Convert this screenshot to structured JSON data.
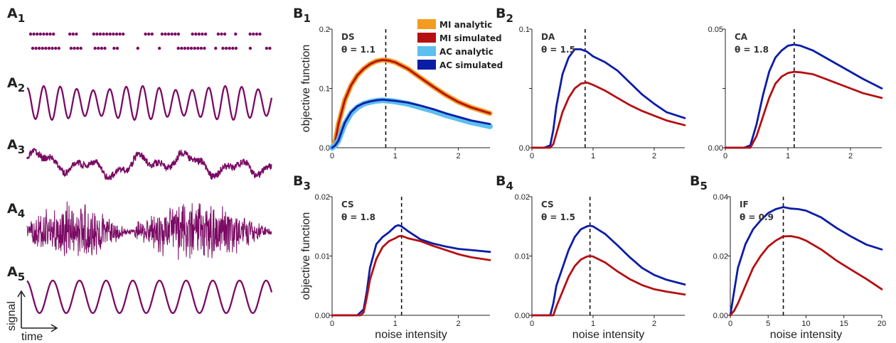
{
  "colors": {
    "signal": "#7a0a63",
    "mi_analytic": "#f39c1f",
    "mi_simulated": "#b50f12",
    "ac_analytic": "#5bbfef",
    "ac_simulated": "#0b1da6"
  },
  "signal_panels": [
    {
      "id": "A",
      "sub": "1",
      "kind": "spikes"
    },
    {
      "id": "A",
      "sub": "2",
      "kind": "quasi-periodic"
    },
    {
      "id": "A",
      "sub": "3",
      "kind": "noisy"
    },
    {
      "id": "A",
      "sub": "4",
      "kind": "bursty"
    },
    {
      "id": "A",
      "sub": "5",
      "kind": "sine"
    }
  ],
  "signal_axes": {
    "ylabel": "signal",
    "xlabel": "time"
  },
  "chart_data": [
    {
      "id": "B",
      "sub": "1",
      "type": "line",
      "annotation": [
        "DS",
        "θ = 1.1"
      ],
      "xlim": [
        0,
        2.5
      ],
      "ylim": [
        0,
        0.2
      ],
      "xticks": [
        "0",
        "1",
        "2"
      ],
      "yticks": [
        "0.0",
        "0.1",
        "0.2"
      ],
      "xlabel": "",
      "ylabel": "objective function",
      "vline": 0.85,
      "legend": [
        "MI analytic",
        "MI simulated",
        "AC analytic",
        "AC simulated"
      ],
      "series": [
        {
          "name": "MI analytic",
          "role": "mi_analytic",
          "x": [
            0,
            0.05,
            0.1,
            0.2,
            0.3,
            0.4,
            0.5,
            0.6,
            0.7,
            0.8,
            0.9,
            1.0,
            1.2,
            1.4,
            1.6,
            1.8,
            2.0,
            2.2,
            2.5
          ],
          "y": [
            0.0,
            0.01,
            0.04,
            0.08,
            0.105,
            0.122,
            0.133,
            0.141,
            0.146,
            0.148,
            0.147,
            0.144,
            0.133,
            0.118,
            0.103,
            0.089,
            0.077,
            0.068,
            0.058
          ]
        },
        {
          "name": "MI simulated",
          "role": "mi_simulated",
          "x": [
            0,
            0.05,
            0.1,
            0.2,
            0.3,
            0.4,
            0.5,
            0.6,
            0.7,
            0.8,
            0.9,
            1.0,
            1.2,
            1.4,
            1.6,
            1.8,
            2.0,
            2.2,
            2.5
          ],
          "y": [
            0.0,
            0.01,
            0.04,
            0.08,
            0.105,
            0.122,
            0.133,
            0.141,
            0.146,
            0.148,
            0.147,
            0.144,
            0.133,
            0.118,
            0.103,
            0.089,
            0.077,
            0.068,
            0.058
          ]
        },
        {
          "name": "AC analytic",
          "role": "ac_analytic",
          "x": [
            0,
            0.05,
            0.1,
            0.2,
            0.3,
            0.4,
            0.5,
            0.6,
            0.7,
            0.8,
            0.9,
            1.0,
            1.2,
            1.4,
            1.6,
            1.8,
            2.0,
            2.2,
            2.5
          ],
          "y": [
            0.0,
            0.004,
            0.012,
            0.04,
            0.058,
            0.068,
            0.074,
            0.077,
            0.079,
            0.08,
            0.079,
            0.078,
            0.074,
            0.068,
            0.062,
            0.055,
            0.049,
            0.043,
            0.036
          ]
        },
        {
          "name": "AC simulated",
          "role": "ac_simulated",
          "x": [
            0,
            0.05,
            0.1,
            0.2,
            0.3,
            0.4,
            0.5,
            0.6,
            0.7,
            0.8,
            0.9,
            1.0,
            1.2,
            1.4,
            1.6,
            1.8,
            2.0,
            2.2,
            2.5
          ],
          "y": [
            0.0,
            0.004,
            0.012,
            0.042,
            0.06,
            0.07,
            0.075,
            0.078,
            0.08,
            0.081,
            0.08,
            0.079,
            0.076,
            0.071,
            0.065,
            0.058,
            0.052,
            0.046,
            0.04
          ]
        }
      ]
    },
    {
      "id": "B",
      "sub": "2",
      "type": "line",
      "annotation": [
        "DA",
        "θ = 1.5"
      ],
      "xlim": [
        0,
        2.5
      ],
      "ylim": [
        0,
        0.1
      ],
      "xticks": [
        "0",
        "1",
        "2"
      ],
      "yticks": [
        "0.0",
        "",
        "0.1"
      ],
      "vline": 0.87,
      "series": [
        {
          "role": "ac_simulated",
          "x": [
            0,
            0.2,
            0.3,
            0.35,
            0.4,
            0.5,
            0.6,
            0.7,
            0.8,
            0.9,
            1.0,
            1.2,
            1.4,
            1.6,
            1.8,
            2.0,
            2.2,
            2.5
          ],
          "y": [
            0,
            0,
            0.002,
            0.015,
            0.035,
            0.062,
            0.076,
            0.083,
            0.083,
            0.081,
            0.077,
            0.072,
            0.065,
            0.055,
            0.045,
            0.037,
            0.03,
            0.025
          ]
        },
        {
          "role": "mi_simulated",
          "x": [
            0,
            0.3,
            0.35,
            0.4,
            0.5,
            0.6,
            0.7,
            0.8,
            0.9,
            1.0,
            1.2,
            1.4,
            1.6,
            1.8,
            2.0,
            2.2,
            2.5
          ],
          "y": [
            0,
            0,
            0.003,
            0.012,
            0.03,
            0.042,
            0.05,
            0.054,
            0.055,
            0.053,
            0.048,
            0.042,
            0.036,
            0.031,
            0.027,
            0.023,
            0.019
          ]
        }
      ]
    },
    {
      "id": "C",
      "sub": "",
      "type": "line",
      "annotation": [
        "CA",
        "θ = 1.8"
      ],
      "xlim": [
        0,
        2.5
      ],
      "ylim": [
        0,
        0.05
      ],
      "xticks": [
        "0",
        "1",
        "2"
      ],
      "yticks": [
        "0.00",
        "",
        "0.05"
      ],
      "vline": 1.1,
      "series": [
        {
          "role": "ac_simulated",
          "x": [
            0,
            0.3,
            0.4,
            0.5,
            0.6,
            0.7,
            0.8,
            0.9,
            1.0,
            1.1,
            1.2,
            1.4,
            1.6,
            1.8,
            2.0,
            2.2,
            2.5
          ],
          "y": [
            0,
            0,
            0.001,
            0.01,
            0.022,
            0.032,
            0.038,
            0.041,
            0.043,
            0.0435,
            0.043,
            0.041,
            0.038,
            0.035,
            0.032,
            0.029,
            0.025
          ]
        },
        {
          "role": "mi_simulated",
          "x": [
            0,
            0.4,
            0.5,
            0.6,
            0.7,
            0.8,
            0.9,
            1.0,
            1.1,
            1.2,
            1.4,
            1.6,
            1.8,
            2.0,
            2.2,
            2.5
          ],
          "y": [
            0,
            0,
            0.005,
            0.013,
            0.021,
            0.027,
            0.03,
            0.0315,
            0.032,
            0.0318,
            0.031,
            0.029,
            0.027,
            0.025,
            0.023,
            0.021
          ]
        }
      ]
    },
    {
      "id": "B",
      "sub": "3",
      "type": "line",
      "annotation": [
        "CS",
        "θ = 1.8"
      ],
      "xlim": [
        0,
        2.5
      ],
      "ylim": [
        0,
        0.02
      ],
      "xticks": [
        "0",
        "1",
        "2"
      ],
      "yticks": [
        "0.00",
        "0.01",
        "0.02"
      ],
      "xlabel": "noise intensity",
      "ylabel": "objective function",
      "vline": 1.1,
      "series": [
        {
          "role": "ac_simulated",
          "x": [
            0,
            0.4,
            0.5,
            0.55,
            0.6,
            0.7,
            0.8,
            0.9,
            1.0,
            1.05,
            1.1,
            1.2,
            1.4,
            1.6,
            1.8,
            2.0,
            2.2,
            2.5
          ],
          "y": [
            0,
            0,
            0.001,
            0.004,
            0.008,
            0.012,
            0.0132,
            0.014,
            0.015,
            0.0152,
            0.015,
            0.0142,
            0.0128,
            0.0121,
            0.0116,
            0.0112,
            0.011,
            0.0107
          ]
        },
        {
          "role": "mi_simulated",
          "x": [
            0,
            0.45,
            0.5,
            0.55,
            0.6,
            0.7,
            0.8,
            0.9,
            1.0,
            1.05,
            1.1,
            1.2,
            1.4,
            1.6,
            1.8,
            2.0,
            2.2,
            2.5
          ],
          "y": [
            0,
            0,
            0.0005,
            0.003,
            0.006,
            0.0095,
            0.0115,
            0.0125,
            0.013,
            0.0133,
            0.0134,
            0.013,
            0.0125,
            0.0117,
            0.011,
            0.0103,
            0.0098,
            0.0093
          ]
        }
      ]
    },
    {
      "id": "B",
      "sub": "4",
      "type": "line",
      "annotation": [
        "CS",
        "θ = 1.5"
      ],
      "xlim": [
        0,
        2.5
      ],
      "ylim": [
        0,
        0.02
      ],
      "xticks": [
        "0",
        "1",
        "2"
      ],
      "yticks": [
        "0.00",
        "0.01",
        "0.02"
      ],
      "xlabel": "noise intensity",
      "vline": 0.95,
      "series": [
        {
          "role": "ac_simulated",
          "x": [
            0,
            0.3,
            0.35,
            0.4,
            0.5,
            0.6,
            0.7,
            0.8,
            0.9,
            0.95,
            1.0,
            1.2,
            1.4,
            1.6,
            1.8,
            2.0,
            2.2,
            2.5
          ],
          "y": [
            0,
            0,
            0.002,
            0.005,
            0.008,
            0.011,
            0.0132,
            0.0145,
            0.015,
            0.0151,
            0.015,
            0.0137,
            0.0118,
            0.0098,
            0.008,
            0.0068,
            0.006,
            0.0052
          ]
        },
        {
          "role": "mi_simulated",
          "x": [
            0,
            0.35,
            0.4,
            0.5,
            0.6,
            0.7,
            0.8,
            0.9,
            0.95,
            1.0,
            1.2,
            1.4,
            1.6,
            1.8,
            2.0,
            2.2,
            2.5
          ],
          "y": [
            0,
            0,
            0.0015,
            0.004,
            0.0065,
            0.0083,
            0.0094,
            0.0099,
            0.01,
            0.0099,
            0.0089,
            0.0074,
            0.0061,
            0.0051,
            0.0044,
            0.004,
            0.0035
          ]
        }
      ]
    },
    {
      "id": "B",
      "sub": "5",
      "type": "line",
      "annotation": [
        "IF",
        "θ = 0.9"
      ],
      "xlim": [
        0,
        20
      ],
      "ylim": [
        0,
        0.04
      ],
      "xticks": [
        "0",
        "5",
        "10",
        "15",
        "20"
      ],
      "yticks": [
        "0.00",
        "0.02",
        "0.04"
      ],
      "xlabel": "noise intensity",
      "vline": 7,
      "series": [
        {
          "role": "ac_simulated",
          "x": [
            0,
            0.5,
            1,
            2,
            3,
            4,
            5,
            6,
            7,
            8,
            9,
            10,
            12,
            14,
            16,
            18,
            20
          ],
          "y": [
            0,
            0.008,
            0.016,
            0.024,
            0.029,
            0.032,
            0.0345,
            0.0358,
            0.0365,
            0.036,
            0.0358,
            0.0353,
            0.033,
            0.0295,
            0.0265,
            0.0238,
            0.0222
          ]
        },
        {
          "role": "mi_simulated",
          "x": [
            0,
            0.5,
            1,
            2,
            3,
            4,
            5,
            6,
            7,
            8,
            9,
            10,
            12,
            14,
            16,
            18,
            20
          ],
          "y": [
            0,
            0.0015,
            0.004,
            0.01,
            0.016,
            0.02,
            0.0232,
            0.0252,
            0.0266,
            0.0267,
            0.0262,
            0.0252,
            0.0222,
            0.0185,
            0.0153,
            0.0122,
            0.0088
          ]
        }
      ]
    }
  ]
}
